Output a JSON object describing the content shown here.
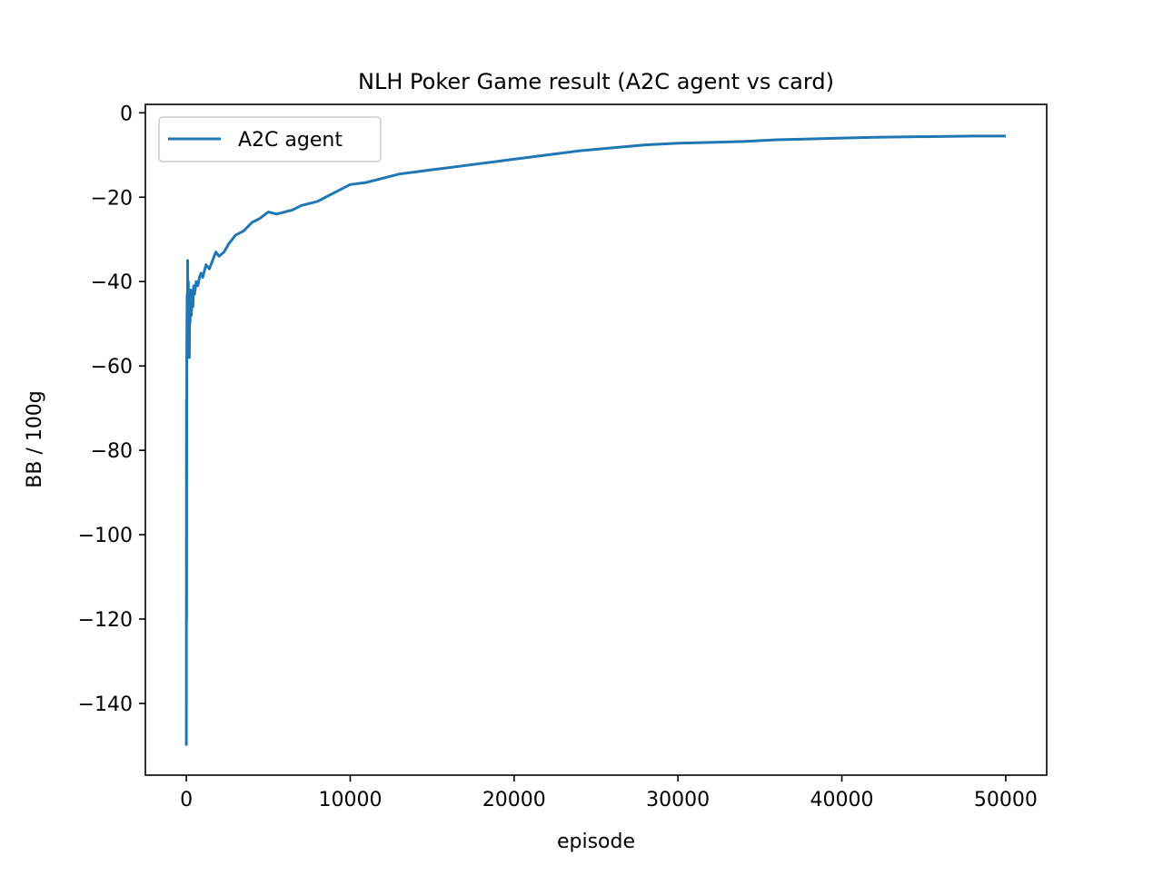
{
  "chart_data": {
    "type": "line",
    "title": "NLH Poker Game result (A2C agent vs card)",
    "xlabel": "episode",
    "ylabel": "BB / 100g",
    "xlim": [
      -2500,
      52500
    ],
    "ylim": [
      -157,
      2
    ],
    "x_ticks": [
      0,
      10000,
      20000,
      30000,
      40000,
      50000
    ],
    "x_tick_labels": [
      "0",
      "10000",
      "20000",
      "30000",
      "40000",
      "50000"
    ],
    "y_ticks": [
      0,
      -20,
      -40,
      -60,
      -80,
      -100,
      -120,
      -140
    ],
    "y_tick_labels": [
      "0",
      "−20",
      "−40",
      "−60",
      "−80",
      "−100",
      "−120",
      "−140"
    ],
    "grid": false,
    "legend": {
      "position": "upper-left"
    },
    "series": [
      {
        "name": "A2C agent",
        "color": "#1f77b4",
        "x": [
          0,
          5,
          10,
          15,
          20,
          25,
          30,
          40,
          50,
          60,
          70,
          80,
          100,
          120,
          140,
          160,
          180,
          200,
          220,
          250,
          280,
          300,
          350,
          400,
          450,
          500,
          600,
          700,
          800,
          900,
          1000,
          1200,
          1400,
          1600,
          1800,
          2000,
          2300,
          2600,
          3000,
          3500,
          4000,
          4500,
          5000,
          5500,
          6000,
          6500,
          7000,
          7500,
          8000,
          8500,
          9000,
          9500,
          10000,
          11000,
          12000,
          13000,
          14000,
          15000,
          16000,
          17000,
          18000,
          19000,
          20000,
          22000,
          24000,
          26000,
          28000,
          30000,
          32000,
          34000,
          36000,
          38000,
          40000,
          42000,
          44000,
          46000,
          48000,
          50000
        ],
        "y": [
          -150,
          -100,
          -68,
          -120,
          -93,
          -70,
          -55,
          -48,
          -43,
          -46,
          -50,
          -35,
          -55,
          -40,
          -52,
          -45,
          -58,
          -44,
          -50,
          -46,
          -42,
          -48,
          -44,
          -46,
          -41,
          -43,
          -40,
          -41,
          -39,
          -38,
          -39,
          -36,
          -37,
          -35,
          -33,
          -34,
          -33,
          -31,
          -29,
          -28,
          -26,
          -25,
          -23.5,
          -24,
          -23.5,
          -23,
          -22,
          -21.5,
          -21,
          -20,
          -19,
          -18,
          -17,
          -16.5,
          -15.5,
          -14.5,
          -14,
          -13.5,
          -13,
          -12.5,
          -12,
          -11.5,
          -11,
          -10,
          -9,
          -8.3,
          -7.6,
          -7.2,
          -7,
          -6.8,
          -6.4,
          -6.2,
          -6,
          -5.8,
          -5.7,
          -5.6,
          -5.5,
          -5.5
        ]
      }
    ]
  }
}
